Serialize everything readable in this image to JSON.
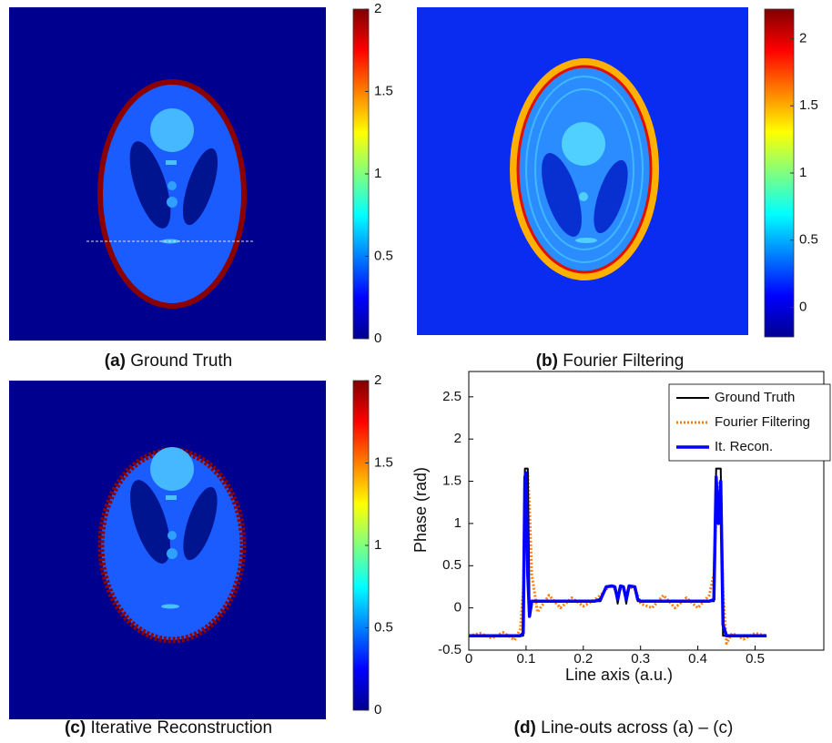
{
  "chart_data": [
    {
      "type": "heatmap",
      "panel": "(a)",
      "caption": "Ground Truth",
      "clim": [
        0,
        2
      ],
      "cticks": [
        0,
        0.5,
        1,
        1.5,
        2
      ]
    },
    {
      "type": "heatmap",
      "panel": "(b)",
      "caption": "Fourier Filtering",
      "clim": [
        -0.22,
        2.22
      ],
      "cticks": [
        0,
        0.5,
        1,
        1.5,
        2
      ]
    },
    {
      "type": "heatmap",
      "panel": "(c)",
      "caption": "Iterative Reconstruction",
      "clim": [
        0,
        2
      ],
      "cticks": [
        0,
        0.5,
        1,
        1.5,
        2
      ]
    },
    {
      "type": "line",
      "panel": "(d)",
      "caption": "Line-outs across (a) – (c)",
      "xlabel": "Line axis (a.u.)",
      "ylabel": "Phase (rad)",
      "x": [
        0,
        0.02,
        0.04,
        0.06,
        0.08,
        0.09,
        0.095,
        0.098,
        0.1,
        0.103,
        0.106,
        0.11,
        0.12,
        0.14,
        0.16,
        0.18,
        0.2,
        0.22,
        0.23,
        0.24,
        0.25,
        0.255,
        0.26,
        0.265,
        0.27,
        0.275,
        0.28,
        0.29,
        0.295,
        0.3,
        0.32,
        0.34,
        0.36,
        0.38,
        0.4,
        0.42,
        0.428,
        0.432,
        0.436,
        0.44,
        0.444,
        0.45,
        0.46,
        0.48,
        0.5,
        0.52
      ],
      "series": [
        {
          "name": "Ground Truth",
          "color": "#000000",
          "values": [
            -0.33,
            -0.33,
            -0.33,
            -0.33,
            -0.33,
            -0.33,
            -0.33,
            1.65,
            1.65,
            1.65,
            0.08,
            0.08,
            0.08,
            0.08,
            0.08,
            0.08,
            0.08,
            0.08,
            0.08,
            0.25,
            0.25,
            0.25,
            0.05,
            0.25,
            0.25,
            0.05,
            0.25,
            0.25,
            0.08,
            0.08,
            0.08,
            0.08,
            0.08,
            0.08,
            0.08,
            0.08,
            0.08,
            1.65,
            1.65,
            1.65,
            -0.33,
            -0.33,
            -0.33,
            -0.33,
            -0.33,
            -0.33
          ]
        },
        {
          "name": "Fourier Filtering",
          "color": "#ff7f0e",
          "values": [
            -0.33,
            -0.3,
            -0.36,
            -0.29,
            -0.38,
            -0.25,
            0.2,
            1.2,
            1.5,
            1.6,
            1.2,
            0.4,
            -0.05,
            0.15,
            0.0,
            0.12,
            0.02,
            0.1,
            0.15,
            0.22,
            0.27,
            0.22,
            0.12,
            0.22,
            0.25,
            0.12,
            0.25,
            0.22,
            0.15,
            0.05,
            0.0,
            0.15,
            0.0,
            0.12,
            0.0,
            0.15,
            0.4,
            1.1,
            1.5,
            1.2,
            0.2,
            -0.42,
            -0.3,
            -0.37,
            -0.3,
            -0.33
          ]
        },
        {
          "name": "It. Recon.",
          "color": "#0000ff",
          "values": [
            -0.33,
            -0.33,
            -0.33,
            -0.33,
            -0.33,
            -0.33,
            -0.3,
            1.55,
            1.6,
            0.4,
            -0.1,
            0.08,
            0.08,
            0.08,
            0.08,
            0.08,
            0.08,
            0.08,
            0.1,
            0.25,
            0.26,
            0.25,
            0.1,
            0.26,
            0.25,
            0.1,
            0.26,
            0.25,
            0.1,
            0.08,
            0.08,
            0.08,
            0.08,
            0.08,
            0.08,
            0.08,
            0.1,
            1.55,
            1.0,
            1.5,
            -0.2,
            -0.33,
            -0.33,
            -0.33,
            -0.33,
            -0.33
          ]
        }
      ],
      "xlim": [
        0,
        0.62
      ],
      "ylim": [
        -0.5,
        2.8
      ],
      "xticks": [
        0,
        0.1,
        0.2,
        0.3,
        0.4,
        0.5
      ],
      "yticks": [
        -0.5,
        0,
        0.5,
        1,
        1.5,
        2,
        2.5
      ]
    }
  ]
}
